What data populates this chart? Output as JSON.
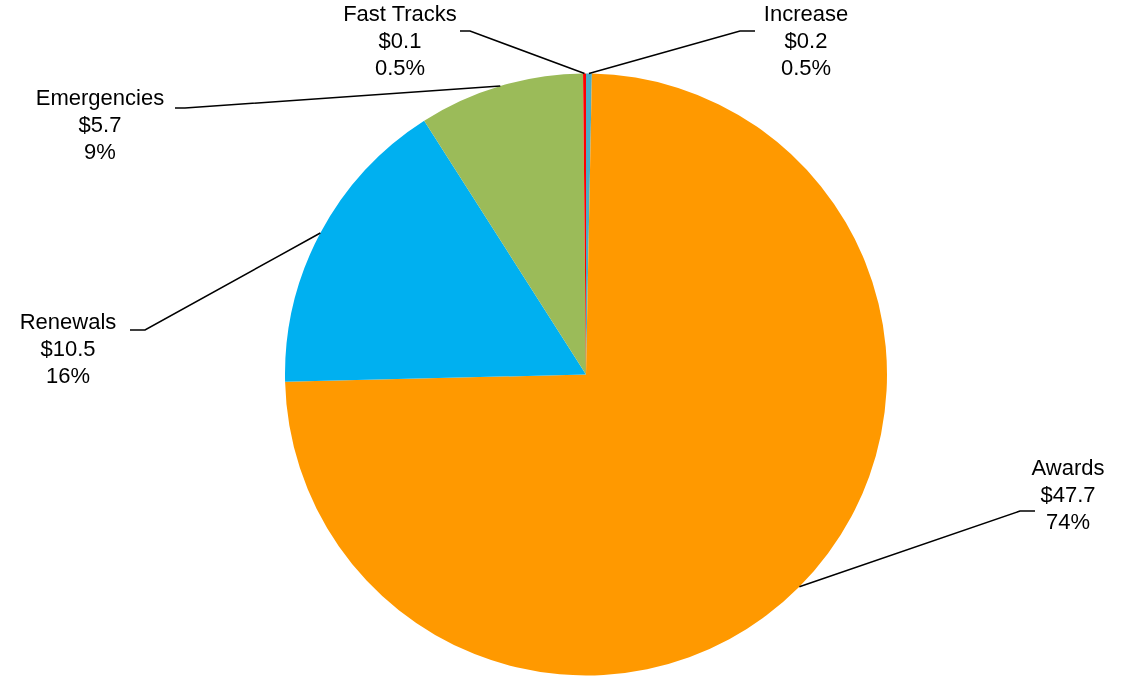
{
  "chart_data": {
    "type": "pie",
    "categories": [
      "Increase",
      "Awards",
      "Renewals",
      "Emergencies",
      "Fast Tracks"
    ],
    "values": [
      0.2,
      47.7,
      10.5,
      5.7,
      0.1
    ],
    "colors": [
      "#4bacc6",
      "#ff9900",
      "#00b0f0",
      "#9bbb59",
      "#ff0000"
    ],
    "value_labels": [
      "$0.2\n0.5%",
      "$47.7\n74%",
      "$10.5\n16%",
      "$5.7\n9%",
      "$0.1\n0.5%"
    ],
    "legend": false
  }
}
